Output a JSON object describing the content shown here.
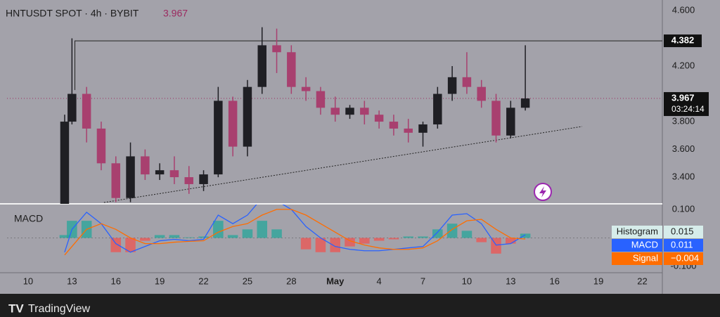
{
  "chart_data": [
    {
      "type": "candlestick",
      "title": "HNTUSDT SPOT · 4h · BYBIT",
      "last_price": 3.967,
      "countdown": "03:24:14",
      "up_color": "#1f1f24",
      "down_color": "#a8406f",
      "x": [
        2.5,
        3,
        4,
        5,
        6,
        7,
        8,
        9,
        10,
        11,
        12,
        13,
        14,
        15,
        16,
        17,
        18,
        19,
        20,
        21,
        22,
        23,
        24,
        25,
        26,
        27,
        28,
        29,
        30,
        31,
        32,
        33,
        34
      ],
      "open": [
        3.2,
        3.8,
        4.0,
        3.75,
        3.5,
        3.25,
        3.55,
        3.42,
        3.45,
        3.4,
        3.35,
        3.42,
        3.95,
        3.62,
        4.05,
        4.35,
        4.3,
        4.05,
        4.02,
        3.9,
        3.85,
        3.9,
        3.85,
        3.8,
        3.75,
        3.72,
        3.78,
        4.0,
        4.12,
        4.05,
        3.95,
        3.7,
        3.9
      ],
      "high": [
        3.85,
        4.4,
        4.05,
        3.8,
        3.55,
        3.65,
        3.6,
        3.5,
        3.55,
        3.48,
        3.45,
        4.05,
        3.98,
        4.1,
        4.48,
        4.47,
        4.35,
        4.12,
        4.05,
        3.98,
        3.92,
        3.95,
        3.88,
        3.85,
        3.82,
        3.8,
        4.05,
        4.2,
        4.3,
        4.1,
        4.0,
        3.95,
        4.35
      ],
      "low": [
        3.18,
        3.78,
        3.65,
        3.45,
        3.22,
        3.22,
        3.38,
        3.38,
        3.35,
        3.28,
        3.3,
        3.4,
        3.55,
        3.55,
        4.0,
        4.15,
        4.0,
        3.95,
        3.85,
        3.8,
        3.82,
        3.78,
        3.75,
        3.7,
        3.65,
        3.62,
        3.75,
        3.95,
        4.0,
        3.9,
        3.65,
        3.68,
        3.88
      ],
      "close": [
        3.8,
        4.0,
        3.75,
        3.5,
        3.25,
        3.55,
        3.42,
        3.45,
        3.4,
        3.35,
        3.42,
        3.95,
        3.62,
        4.05,
        4.35,
        4.3,
        4.05,
        4.02,
        3.9,
        3.85,
        3.9,
        3.85,
        3.8,
        3.75,
        3.72,
        3.78,
        4.0,
        4.12,
        4.05,
        3.95,
        3.7,
        3.9,
        3.967
      ],
      "level": {
        "value": 4.382,
        "x_start": 3.2
      },
      "trendline": {
        "x": [
          5.19,
          37.88
        ],
        "y": [
          3.218,
          3.765
        ]
      },
      "xlim": [
        -1.44,
        43.37
      ],
      "ylim": [
        3.208,
        4.676
      ],
      "xticks": [
        {
          "value": 0,
          "label": "10"
        },
        {
          "value": 3,
          "label": "13"
        },
        {
          "value": 6,
          "label": "16"
        },
        {
          "value": 9,
          "label": "19"
        },
        {
          "value": 12,
          "label": "22"
        },
        {
          "value": 15,
          "label": "25"
        },
        {
          "value": 18,
          "label": "28"
        },
        {
          "value": 21,
          "label": "May"
        },
        {
          "value": 24,
          "label": "4"
        },
        {
          "value": 27,
          "label": "7"
        },
        {
          "value": 30,
          "label": "10"
        },
        {
          "value": 33,
          "label": "13"
        },
        {
          "value": 36,
          "label": "16"
        },
        {
          "value": 39,
          "label": "19"
        },
        {
          "value": 42,
          "label": "22"
        }
      ],
      "yticks": [
        {
          "value": 4.6,
          "label": "4.600"
        },
        {
          "value": 4.2,
          "label": "4.200"
        },
        {
          "value": 3.8,
          "label": "3.800"
        },
        {
          "value": 3.6,
          "label": "3.600"
        },
        {
          "value": 3.4,
          "label": "3.400"
        }
      ]
    },
    {
      "type": "macd",
      "title": "MACD",
      "x": [
        2.5,
        3,
        4,
        5,
        6,
        7,
        8,
        9,
        10,
        11,
        12,
        13,
        14,
        15,
        16,
        17,
        18,
        19,
        20,
        21,
        22,
        23,
        24,
        25,
        26,
        27,
        28,
        29,
        30,
        31,
        32,
        33,
        34
      ],
      "series": [
        {
          "name": "Histogram",
          "color": "#26a69a",
          "neg_color": "#ef5350",
          "values": [
            0.01,
            0.06,
            0.06,
            0,
            -0.05,
            -0.05,
            -0.01,
            0.01,
            0.01,
            0.002,
            0.005,
            0.06,
            0.01,
            0.03,
            0.06,
            0.03,
            0,
            -0.04,
            -0.05,
            -0.05,
            -0.03,
            -0.02,
            -0.01,
            -0.005,
            0.005,
            0.005,
            0.03,
            0.05,
            0.025,
            -0.015,
            -0.055,
            -0.02,
            0.015
          ]
        },
        {
          "name": "MACD",
          "color": "#2962ff",
          "values": [
            -0.05,
            0.03,
            0.09,
            0.05,
            -0.02,
            -0.05,
            -0.03,
            -0.01,
            -0.005,
            -0.01,
            -0.005,
            0.08,
            0.05,
            0.08,
            0.14,
            0.13,
            0.1,
            0.04,
            0,
            -0.03,
            -0.04,
            -0.045,
            -0.045,
            -0.04,
            -0.035,
            -0.03,
            0.02,
            0.08,
            0.085,
            0.05,
            -0.025,
            -0.02,
            0.011
          ]
        },
        {
          "name": "Signal",
          "color": "#ff6d00",
          "values": [
            -0.06,
            -0.03,
            0.03,
            0.05,
            0.03,
            0,
            -0.02,
            -0.02,
            -0.015,
            -0.012,
            -0.01,
            0.02,
            0.04,
            0.05,
            0.08,
            0.1,
            0.1,
            0.08,
            0.05,
            0.02,
            -0.01,
            -0.025,
            -0.035,
            -0.04,
            -0.04,
            -0.035,
            -0.01,
            0.03,
            0.06,
            0.065,
            0.03,
            0,
            -0.004
          ]
        }
      ],
      "legend_values": [
        0.015,
        0.011,
        {
          "value": -0.004,
          "label": "−0.004"
        }
      ],
      "xlim": [
        -1.44,
        43.37
      ],
      "ylim": [
        -0.122,
        0.117
      ],
      "yticks": [
        {
          "value": 0.1,
          "label": "0.100"
        },
        {
          "value": -0.1,
          "label": "-0.100"
        }
      ]
    }
  ],
  "footer": {
    "brand": "TradingView"
  }
}
